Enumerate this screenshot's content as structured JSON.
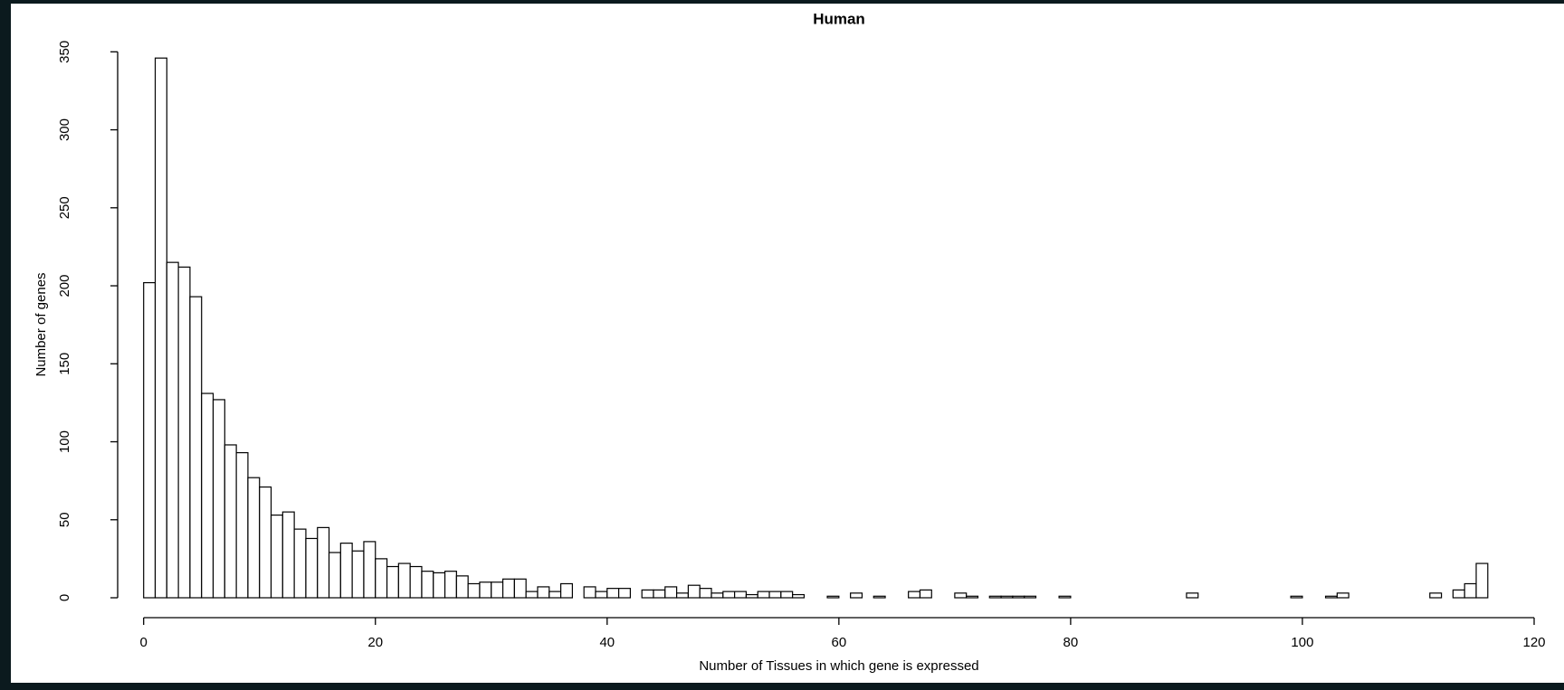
{
  "chart_data": {
    "type": "histogram",
    "title": "Human",
    "xlabel": "Number of Tissues in which gene is expressed",
    "ylabel": "Number of genes",
    "bins": [
      0,
      1,
      2,
      3,
      4,
      5,
      6,
      7,
      8,
      9,
      10,
      11,
      12,
      13,
      14,
      15,
      16,
      17,
      18,
      19,
      20,
      21,
      22,
      23,
      24,
      25,
      26,
      27,
      28,
      29,
      30,
      31,
      32,
      33,
      34,
      35,
      36,
      37,
      38,
      39,
      40,
      41,
      42,
      43,
      44,
      45,
      46,
      47,
      48,
      49,
      50,
      51,
      52,
      53,
      54,
      55,
      56,
      57,
      58,
      59,
      60,
      61,
      62,
      63,
      64,
      65,
      66,
      67,
      68,
      69,
      70,
      71,
      72,
      73,
      74,
      75,
      76,
      77,
      78,
      79,
      80,
      81,
      82,
      83,
      84,
      85,
      86,
      87,
      88,
      89,
      90,
      91,
      92,
      93,
      94,
      95,
      96,
      97,
      98,
      99,
      100,
      101,
      102,
      103,
      104,
      105,
      106,
      107,
      108,
      109,
      110,
      111,
      112,
      113,
      114,
      115,
      116
    ],
    "counts": [
      202,
      346,
      215,
      212,
      193,
      131,
      127,
      98,
      93,
      77,
      71,
      53,
      55,
      44,
      38,
      45,
      29,
      35,
      30,
      36,
      25,
      20,
      22,
      20,
      17,
      16,
      17,
      14,
      9,
      10,
      10,
      12,
      12,
      4,
      7,
      4,
      9,
      0,
      7,
      4,
      6,
      6,
      0,
      5,
      5,
      7,
      3,
      8,
      6,
      3,
      4,
      4,
      2,
      4,
      4,
      4,
      2,
      0,
      0,
      1,
      0,
      3,
      0,
      1,
      0,
      0,
      4,
      5,
      0,
      0,
      3,
      1,
      0,
      1,
      1,
      1,
      1,
      0,
      0,
      1,
      0,
      0,
      0,
      0,
      0,
      0,
      0,
      0,
      0,
      0,
      3,
      0,
      0,
      0,
      0,
      0,
      0,
      0,
      0,
      1,
      0,
      0,
      1,
      3,
      0,
      0,
      0,
      0,
      0,
      0,
      0,
      3,
      0,
      5,
      9,
      22
    ],
    "color": "#ffffff",
    "edgecolor": "#000000",
    "xlim": [
      0,
      120
    ],
    "ylim": [
      0,
      350
    ],
    "xticks": [
      0,
      20,
      40,
      60,
      80,
      100,
      120
    ],
    "yticks": [
      0,
      50,
      100,
      150,
      200,
      250,
      300,
      350
    ]
  }
}
